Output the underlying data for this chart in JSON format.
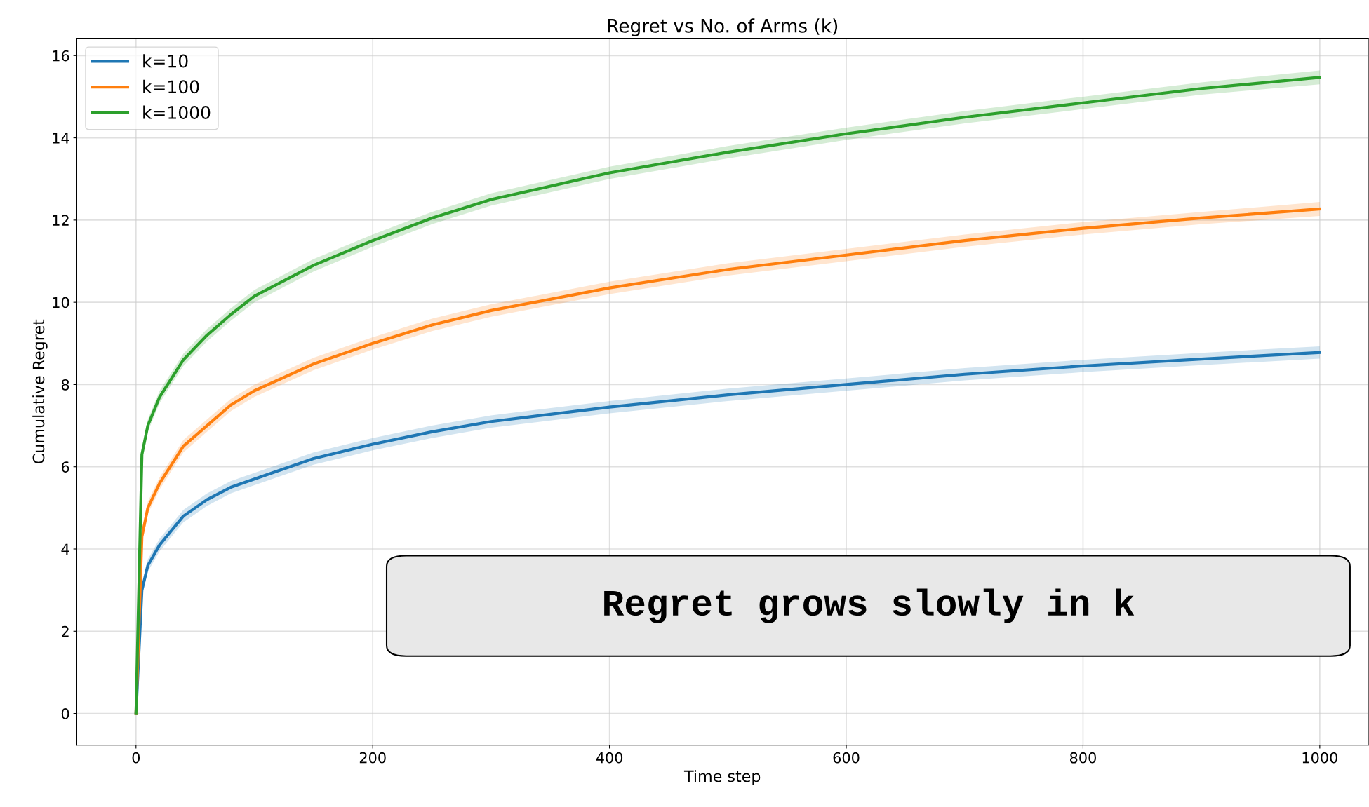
{
  "chart_data": {
    "type": "line",
    "title": "Regret vs No. of Arms (k)",
    "xlabel": "Time step",
    "ylabel": "Cumulative Regret",
    "x": [
      0,
      5,
      10,
      20,
      40,
      60,
      80,
      100,
      150,
      200,
      250,
      300,
      400,
      500,
      600,
      700,
      800,
      900,
      1000
    ],
    "series": [
      {
        "name": "k=10",
        "color": "#1f77b4",
        "values": [
          0,
          3.0,
          3.6,
          4.1,
          4.8,
          5.2,
          5.5,
          5.7,
          6.2,
          6.55,
          6.85,
          7.1,
          7.45,
          7.75,
          8.0,
          8.25,
          8.45,
          8.62,
          8.78
        ],
        "lower": [
          0,
          2.85,
          3.45,
          3.95,
          4.65,
          5.05,
          5.35,
          5.55,
          6.05,
          6.4,
          6.7,
          6.95,
          7.3,
          7.6,
          7.85,
          8.1,
          8.3,
          8.47,
          8.63
        ],
        "upper": [
          0,
          3.15,
          3.75,
          4.25,
          4.95,
          5.35,
          5.65,
          5.85,
          6.35,
          6.7,
          7.0,
          7.25,
          7.6,
          7.9,
          8.15,
          8.4,
          8.6,
          8.77,
          8.93
        ]
      },
      {
        "name": "k=100",
        "color": "#ff7f0e",
        "values": [
          0,
          4.3,
          5.0,
          5.6,
          6.5,
          7.0,
          7.5,
          7.85,
          8.5,
          9.0,
          9.45,
          9.8,
          10.35,
          10.8,
          11.15,
          11.5,
          11.8,
          12.05,
          12.27
        ],
        "lower": [
          0,
          4.15,
          4.85,
          5.45,
          6.35,
          6.85,
          7.35,
          7.7,
          8.35,
          8.85,
          9.3,
          9.65,
          10.2,
          10.65,
          11.0,
          11.35,
          11.65,
          11.9,
          12.1
        ],
        "upper": [
          0,
          4.45,
          5.15,
          5.75,
          6.65,
          7.15,
          7.65,
          8.0,
          8.65,
          9.15,
          9.6,
          9.95,
          10.5,
          10.95,
          11.3,
          11.65,
          11.95,
          12.2,
          12.44
        ]
      },
      {
        "name": "k=1000",
        "color": "#2ca02c",
        "values": [
          0,
          6.3,
          7.0,
          7.7,
          8.6,
          9.2,
          9.7,
          10.15,
          10.9,
          11.5,
          12.05,
          12.5,
          13.15,
          13.65,
          14.1,
          14.5,
          14.85,
          15.2,
          15.47
        ],
        "lower": [
          0,
          6.15,
          6.85,
          7.55,
          8.45,
          9.05,
          9.55,
          10.0,
          10.75,
          11.35,
          11.9,
          12.35,
          13.0,
          13.5,
          13.95,
          14.35,
          14.7,
          15.05,
          15.3
        ],
        "upper": [
          0,
          6.45,
          7.15,
          7.85,
          8.75,
          9.35,
          9.85,
          10.3,
          11.05,
          11.65,
          12.2,
          12.65,
          13.3,
          13.8,
          14.25,
          14.65,
          15.0,
          15.35,
          15.64
        ]
      }
    ],
    "xlim": [
      -50,
      1041
    ],
    "xticks": [
      0,
      200,
      400,
      600,
      800,
      1000
    ],
    "ylim": [
      -0.77,
      16.42
    ],
    "yticks": [
      0,
      2,
      4,
      6,
      8,
      10,
      12,
      14,
      16
    ],
    "grid": true,
    "legend": "top left",
    "marker": "none",
    "line_style": "solid",
    "annotations": [
      "Regret grows slowly in k"
    ]
  }
}
